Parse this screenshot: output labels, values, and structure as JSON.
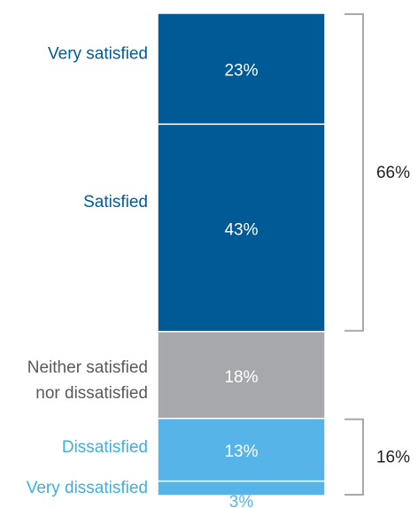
{
  "chart_data": {
    "type": "bar",
    "stacked": true,
    "orientation": "vertical",
    "categories": [
      "Very satisfied",
      "Satisfied",
      "Neither satisfied nor dissatisfied",
      "Dissatisfied",
      "Very dissatisfied"
    ],
    "values": [
      23,
      43,
      18,
      13,
      3
    ],
    "value_labels": [
      "23%",
      "43%",
      "18%",
      "13%",
      "3%"
    ],
    "category_label_lines": [
      [
        "Very satisfied"
      ],
      [
        "Satisfied"
      ],
      [
        "Neither satisfied",
        "nor dissatisfied"
      ],
      [
        "Dissatisfied"
      ],
      [
        "Very dissatisfied"
      ]
    ],
    "colors": [
      "#005a96",
      "#005a96",
      "#a6a8ab",
      "#56b4e9",
      "#56b4e9"
    ],
    "label_colors": [
      "#005a96",
      "#005a96",
      "#58595b",
      "#3ab0e2",
      "#3ab0e2"
    ],
    "brackets": [
      {
        "label": "66%",
        "from_index": 0,
        "to_index": 1
      },
      {
        "label": "16%",
        "from_index": 3,
        "to_index": 4
      }
    ],
    "title": "",
    "xlabel": "",
    "ylabel": "",
    "grid": false,
    "legend": false
  }
}
